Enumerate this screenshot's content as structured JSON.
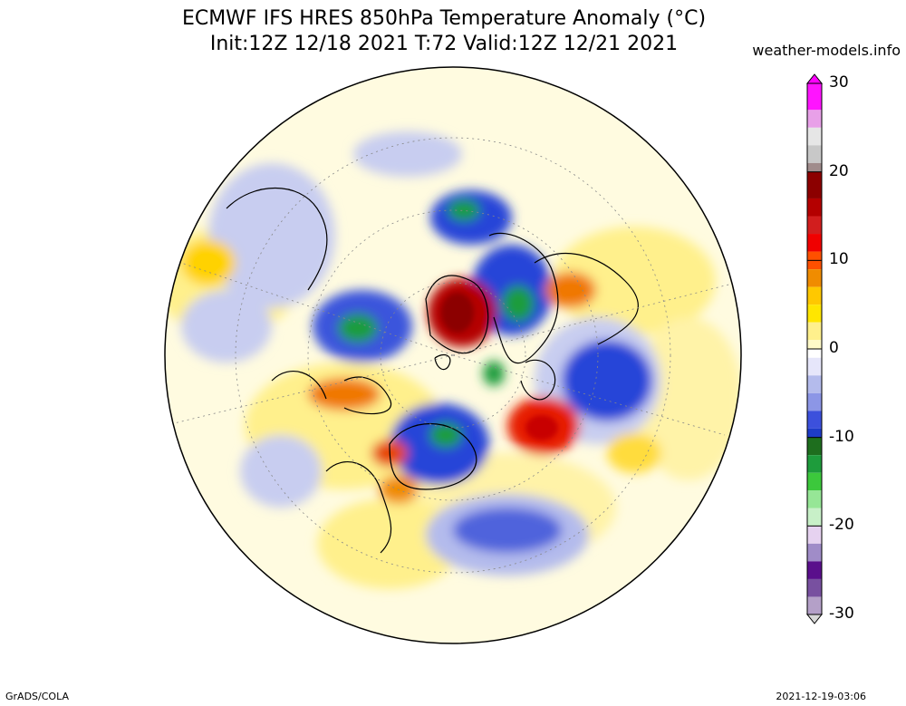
{
  "title_line1": "ECMWF IFS HRES 850hPa Temperature Anomaly (°C)",
  "title_line2": "Init:12Z 12/18 2021 T:72 Valid:12Z 12/21 2021",
  "credit": "weather-models.info",
  "footer_left": "GrADS/COLA",
  "footer_right": "2021-12-19-03:06",
  "colorbar": {
    "min": -30,
    "max": 30,
    "labels": [
      "30",
      "20",
      "10",
      "0",
      "-10",
      "-20",
      "-30"
    ],
    "colors": {
      "deep_cold": "#5a0f8c",
      "very_cold": "#1e8c1e",
      "cold": "#1e3cc8",
      "cool": "#a0aae6",
      "neutral": "#ffffff",
      "warm": "#fff08c",
      "hot": "#f08c00",
      "very_hot": "#c80000",
      "extreme": "#ff14ff"
    }
  },
  "map": {
    "projection": "polar-stereographic",
    "variable": "850hPa temperature anomaly",
    "units": "°C"
  }
}
